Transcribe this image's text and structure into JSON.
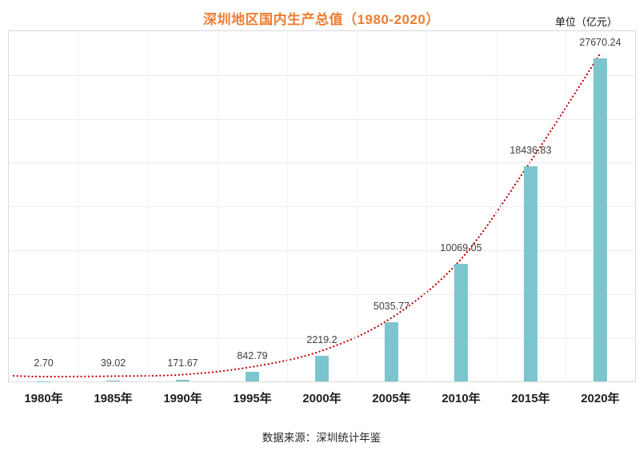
{
  "chart_data": {
    "type": "bar",
    "title": "深圳地区国内生产总值（1980-2020）",
    "unit_label": "单位（亿元）",
    "source": "数据来源：深圳统计年鉴",
    "categories": [
      "1980年",
      "1985年",
      "1990年",
      "1995年",
      "2000年",
      "2005年",
      "2010年",
      "2015年",
      "2020年"
    ],
    "values": [
      2.7,
      39.02,
      171.67,
      842.79,
      2219.2,
      5035.77,
      10069.05,
      18436.83,
      27670.24
    ],
    "value_labels": [
      "2.70",
      "39.02",
      "171.67",
      "842.79",
      "2219.2",
      "5035.77",
      "10069.05",
      "18436.83",
      "27670.24"
    ],
    "ylim": [
      0,
      30000
    ],
    "grid": true,
    "gridline_intervals": 8,
    "legend_position": "none",
    "bar_color": "#7CC5CE",
    "trend_line": "exponential-dotted",
    "trend_color": "#C00000",
    "title_color": "#ED7D31"
  }
}
